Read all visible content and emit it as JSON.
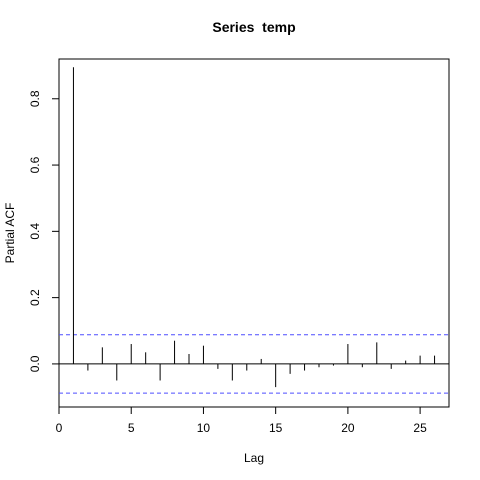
{
  "chart_data": {
    "type": "bar",
    "title": "Series  temp",
    "xlabel": "Lag",
    "ylabel": "Partial ACF",
    "xlim": [
      0,
      27
    ],
    "ylim": [
      -0.13,
      0.92
    ],
    "x_ticks": [
      0,
      5,
      10,
      15,
      20,
      25
    ],
    "x_tick_labels": [
      "0",
      "5",
      "10",
      "15",
      "20",
      "25"
    ],
    "y_ticks": [
      0.0,
      0.2,
      0.4,
      0.6,
      0.8
    ],
    "y_tick_labels": [
      "0.0",
      "0.2",
      "0.4",
      "0.6",
      "0.8"
    ],
    "zero_line": 0,
    "confidence_bounds": [
      0.088,
      -0.088
    ],
    "confidence_color": "#4d4dff",
    "lags": [
      1,
      2,
      3,
      4,
      5,
      6,
      7,
      8,
      9,
      10,
      11,
      12,
      13,
      14,
      15,
      16,
      17,
      18,
      19,
      20,
      21,
      22,
      23,
      24,
      25,
      26
    ],
    "values": [
      0.895,
      -0.02,
      0.05,
      -0.05,
      0.06,
      0.035,
      -0.05,
      0.07,
      0.03,
      0.055,
      -0.015,
      -0.05,
      -0.02,
      0.015,
      -0.07,
      -0.03,
      -0.02,
      -0.01,
      -0.005,
      0.06,
      -0.01,
      0.065,
      -0.015,
      0.01,
      0.025,
      0.025
    ],
    "grid": false,
    "legend": "none"
  }
}
